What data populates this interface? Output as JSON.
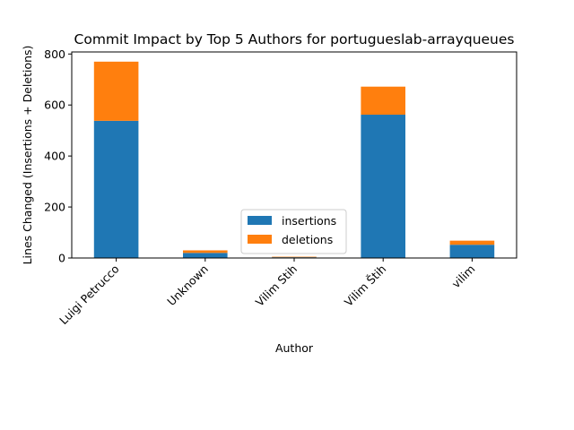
{
  "chart_data": {
    "type": "bar",
    "stacked": true,
    "title": "Commit Impact by Top 5 Authors for portugueslab-arrayqueues",
    "xlabel": "Author",
    "ylabel": "Lines Changed (Insertions + Deletions)",
    "categories": [
      "Luigi Petrucco",
      "Unknown",
      "Vilim Stih",
      "Vilim Štih",
      "vilim"
    ],
    "series": [
      {
        "name": "insertions",
        "color": "#1f77b4",
        "values": [
          538,
          20,
          3,
          562,
          52
        ]
      },
      {
        "name": "deletions",
        "color": "#ff7f0e",
        "values": [
          232,
          10,
          2,
          110,
          16
        ]
      }
    ],
    "ylim": [
      0,
      808
    ],
    "yticks": [
      0,
      200,
      400,
      600,
      800
    ],
    "grid": false,
    "legend_position": "lower-center"
  }
}
